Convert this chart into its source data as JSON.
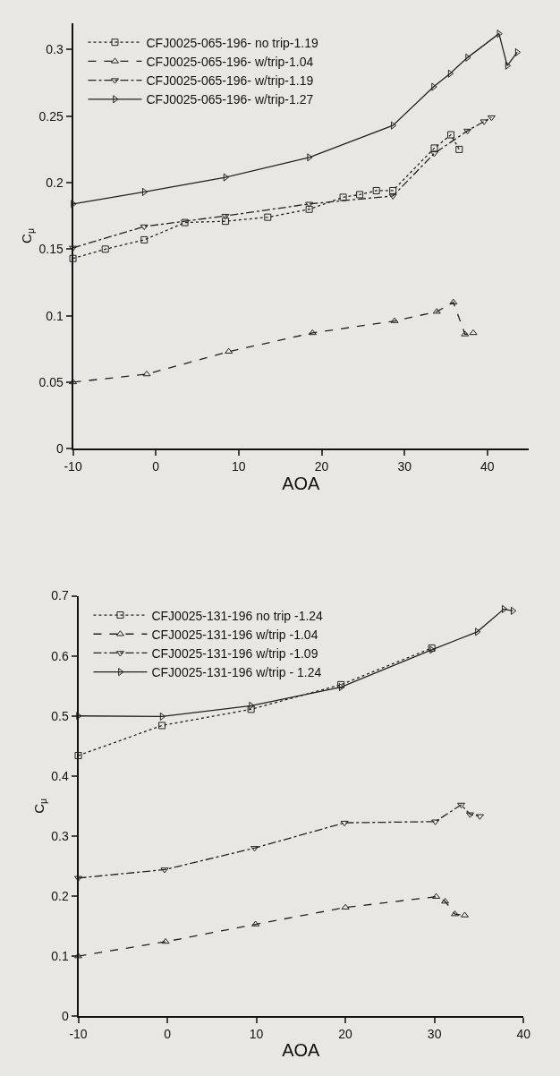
{
  "chart_data": [
    {
      "type": "line",
      "xlabel": "AOA",
      "ylabel": "C$_{μ}$",
      "xlim": [
        -10,
        45
      ],
      "xticks": [
        -10,
        0,
        10,
        20,
        30,
        40
      ],
      "ylim": [
        0,
        0.32
      ],
      "yticks": [
        0,
        0.05,
        0.1,
        0.15,
        0.2,
        0.25,
        0.3
      ],
      "grid": false,
      "legend": "top left",
      "series": [
        {
          "name": "CFJ0025-065-196- no trip-1.19",
          "color": "#222222",
          "marker": "square",
          "line_style": "dotted",
          "x": [
            -10,
            -6.1,
            -1.4,
            3.5,
            8.4,
            13.5,
            18.5,
            22.6,
            24.6,
            26.6,
            28.6,
            33.6,
            35.6,
            36.6
          ],
          "values": [
            0.143,
            0.15,
            0.157,
            0.17,
            0.171,
            0.174,
            0.18,
            0.189,
            0.191,
            0.194,
            0.194,
            0.226,
            0.236,
            0.225
          ]
        },
        {
          "name": "CFJ0025-065-196- w/trip-1.04",
          "color": "#222222",
          "marker": "triangle",
          "line_style": "dashed",
          "x": [
            -10,
            -1.1,
            8.8,
            18.9,
            28.8,
            33.9,
            35.9,
            37.3,
            38.3
          ],
          "values": [
            0.05,
            0.056,
            0.073,
            0.087,
            0.096,
            0.103,
            0.11,
            0.086,
            0.087
          ]
        },
        {
          "name": "CFJ0025-065-196- w/trip-1.19",
          "color": "#222222",
          "marker": "triangle-down",
          "line_style": "dashdot",
          "x": [
            -10,
            -1.4,
            8.4,
            18.5,
            28.6,
            33.6,
            37.6,
            39.6,
            40.5
          ],
          "values": [
            0.151,
            0.167,
            0.175,
            0.184,
            0.19,
            0.222,
            0.239,
            0.246,
            0.249
          ]
        },
        {
          "name": "CFJ0025-065-196- w/trip-1.27",
          "color": "#222222",
          "marker": "triangle-right",
          "line_style": "solid",
          "x": [
            -10,
            -1.4,
            8.4,
            18.5,
            28.6,
            33.5,
            35.5,
            37.6,
            41.4,
            42.4,
            43.6
          ],
          "values": [
            0.184,
            0.193,
            0.204,
            0.219,
            0.243,
            0.272,
            0.282,
            0.294,
            0.312,
            0.288,
            0.298
          ]
        }
      ]
    },
    {
      "type": "line",
      "xlabel": "AOA",
      "ylabel": "C$_{μ}$",
      "xlim": [
        -10,
        40
      ],
      "xticks": [
        -10,
        0,
        10,
        20,
        30,
        40
      ],
      "ylim": [
        0,
        0.7
      ],
      "yticks": [
        0,
        0.1,
        0.2,
        0.3,
        0.4,
        0.5,
        0.6,
        0.7
      ],
      "grid": false,
      "legend": "top left",
      "series": [
        {
          "name": "CFJ0025-131-196 no trip -1.24",
          "color": "#222222",
          "marker": "square",
          "line_style": "dotted",
          "x": [
            -10,
            -0.6,
            9.4,
            19.5,
            29.7
          ],
          "values": [
            0.434,
            0.484,
            0.511,
            0.552,
            0.613
          ]
        },
        {
          "name": "CFJ0025-131-196 w/trip -1.04",
          "color": "#222222",
          "marker": "triangle",
          "line_style": "dashed",
          "x": [
            -10,
            -0.2,
            9.9,
            20.0,
            30.2,
            31.2,
            32.3,
            33.4
          ],
          "values": [
            0.1,
            0.124,
            0.153,
            0.181,
            0.199,
            0.191,
            0.17,
            0.168
          ]
        },
        {
          "name": "CFJ0025-131-196 w/trip -1.09",
          "color": "#222222",
          "marker": "triangle-down",
          "line_style": "dashdot",
          "x": [
            -10,
            -0.3,
            9.8,
            19.9,
            30.1,
            33.0,
            34.0,
            35.1
          ],
          "values": [
            0.23,
            0.244,
            0.28,
            0.322,
            0.324,
            0.352,
            0.336,
            0.333
          ]
        },
        {
          "name": "CFJ0025-131-196 w/trip - 1.24",
          "color": "#222222",
          "marker": "triangle-right",
          "line_style": "solid",
          "x": [
            -10,
            -0.6,
            9.4,
            19.5,
            29.7,
            34.8,
            37.8,
            38.8
          ],
          "values": [
            0.5,
            0.499,
            0.517,
            0.548,
            0.61,
            0.64,
            0.678,
            0.675
          ]
        }
      ]
    }
  ]
}
